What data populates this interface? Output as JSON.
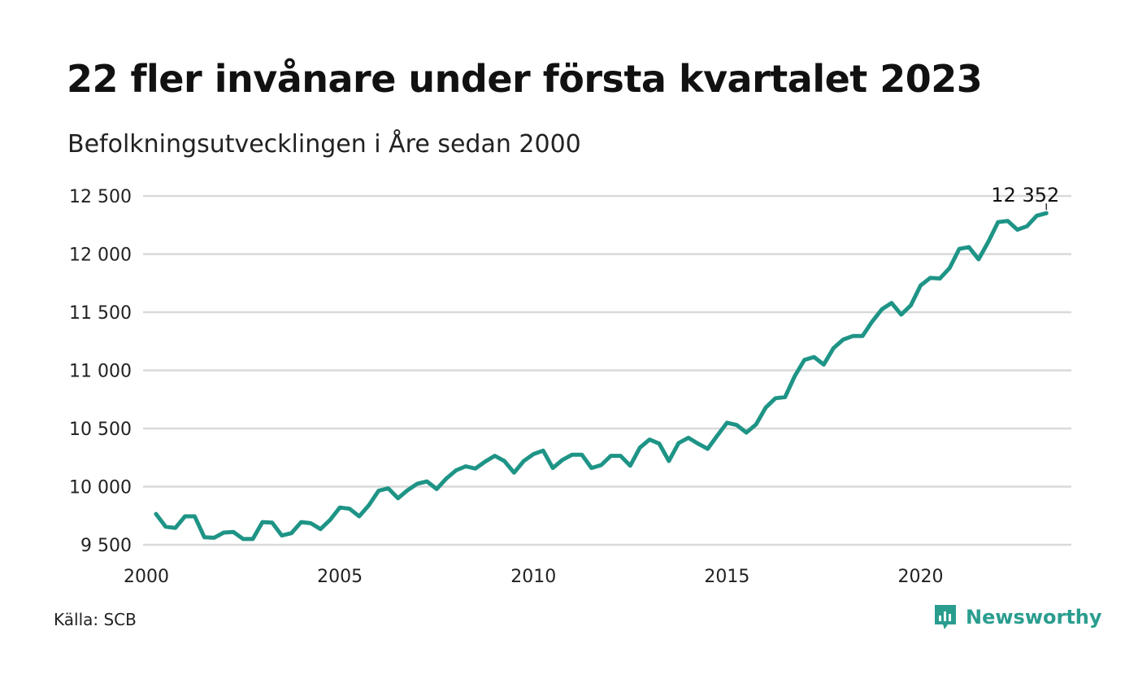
{
  "title": "22 fler invånare under första kvartalet 2023",
  "subtitle": "Befolkningsutvecklingen i Åre sedan 2000",
  "source": "Källa: SCB",
  "brand": "Newsworthy",
  "colors": {
    "line": "#1e9486",
    "grid": "#d9d9d9",
    "brand": "#2a9d8f"
  },
  "icons": {
    "brand_logo": "bar-chart-speech-bubble-icon"
  },
  "chart_data": {
    "type": "line",
    "title": "22 fler invånare under första kvartalet 2023",
    "subtitle": "Befolkningsutvecklingen i Åre sedan 2000",
    "xlim": [
      2000,
      2024.2
    ],
    "ylim": [
      9500,
      12500
    ],
    "x_ticks": [
      2000,
      2005,
      2010,
      2015,
      2020
    ],
    "x_tick_labels": [
      "2000",
      "2005",
      "2010",
      "2015",
      "2020"
    ],
    "y_ticks": [
      9500,
      10000,
      10500,
      11000,
      11500,
      12000,
      12500
    ],
    "y_tick_labels": [
      "9 500",
      "10 000",
      "10 500",
      "11 000",
      "11 500",
      "12 000",
      "12 500"
    ],
    "grid": "horizontal",
    "end_label": "12 352",
    "series": [
      {
        "x": [
          2000.25,
          2000.5,
          2000.75,
          2001.0,
          2001.25,
          2001.5,
          2001.75,
          2002.0,
          2002.25,
          2002.5,
          2002.75,
          2003.0,
          2003.25,
          2003.5,
          2003.75,
          2004.0,
          2004.25,
          2004.5,
          2004.75,
          2005.0,
          2005.25,
          2005.5,
          2005.75,
          2006.0,
          2006.25,
          2006.5,
          2006.75,
          2007.0,
          2007.25,
          2007.5,
          2007.75,
          2008.0,
          2008.25,
          2008.5,
          2008.75,
          2009.0,
          2009.25,
          2009.5,
          2009.75,
          2010.0,
          2010.25,
          2010.5,
          2010.75,
          2011.0,
          2011.25,
          2011.5,
          2011.75,
          2012.0,
          2012.25,
          2012.5,
          2012.75,
          2013.0,
          2013.25,
          2013.5,
          2013.75,
          2014.0,
          2014.25,
          2014.5,
          2014.75,
          2015.0,
          2015.25,
          2015.5,
          2015.75,
          2016.0,
          2016.25,
          2016.5,
          2016.75,
          2017.0,
          2017.25,
          2017.5,
          2017.75,
          2018.0,
          2018.25,
          2018.5,
          2018.75,
          2019.0,
          2019.25,
          2019.5,
          2019.75,
          2020.0,
          2020.25,
          2020.5,
          2020.75,
          2021.0,
          2021.25,
          2021.5,
          2021.75,
          2022.0,
          2022.25,
          2022.5,
          2022.75,
          2023.0,
          2023.25
        ],
        "y": [
          9765,
          9655,
          9645,
          9745,
          9745,
          9565,
          9560,
          9605,
          9610,
          9550,
          9550,
          9695,
          9690,
          9580,
          9600,
          9695,
          9685,
          9635,
          9715,
          9820,
          9810,
          9745,
          9840,
          9965,
          9985,
          9900,
          9970,
          10025,
          10045,
          9980,
          10070,
          10140,
          10175,
          10155,
          10215,
          10265,
          10220,
          10120,
          10220,
          10280,
          10310,
          10160,
          10230,
          10275,
          10275,
          10160,
          10185,
          10265,
          10265,
          10180,
          10335,
          10405,
          10370,
          10220,
          10375,
          10420,
          10370,
          10325,
          10440,
          10550,
          10530,
          10465,
          10535,
          10680,
          10760,
          10770,
          10950,
          11090,
          11115,
          11050,
          11190,
          11265,
          11295,
          11295,
          11420,
          11525,
          11580,
          11480,
          11560,
          11730,
          11795,
          11790,
          11880,
          12045,
          12060,
          11955,
          12105,
          12275,
          12285,
          12210,
          12240,
          12330,
          12352
        ]
      }
    ]
  }
}
